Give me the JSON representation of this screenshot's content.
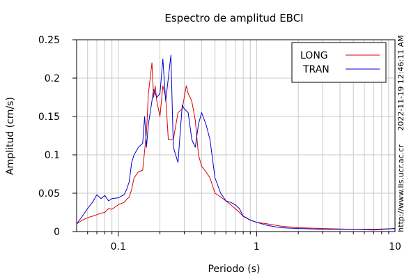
{
  "chart_data": {
    "type": "line",
    "title": "Espectro de amplitud EBCI",
    "xlabel": "Periodo (s)",
    "ylabel": "Amplitud (cm/s)",
    "x_scale": "log",
    "xlim": [
      0.05,
      10
    ],
    "ylim": [
      0,
      0.25
    ],
    "grid": true,
    "legend_position": "top-right",
    "x_tick_labels": [
      "0.1",
      "1",
      "10"
    ],
    "x_tick_values": [
      0.1,
      1,
      10
    ],
    "y_tick_labels": [
      "0",
      "0.05",
      "0.1",
      "0.15",
      "0.2",
      "0.25"
    ],
    "y_tick_values": [
      0,
      0.05,
      0.1,
      0.15,
      0.2,
      0.25
    ],
    "side_timestamp": "2022-11-19 12:46:11 AM",
    "side_url": "http://www.lis.ucr.ac.cr",
    "series": [
      {
        "name": "LONG",
        "color": "#dd0000",
        "x": [
          0.05,
          0.055,
          0.06,
          0.065,
          0.07,
          0.075,
          0.08,
          0.085,
          0.09,
          0.1,
          0.11,
          0.115,
          0.12,
          0.125,
          0.13,
          0.14,
          0.15,
          0.16,
          0.165,
          0.17,
          0.175,
          0.18,
          0.185,
          0.19,
          0.2,
          0.21,
          0.22,
          0.23,
          0.25,
          0.27,
          0.29,
          0.31,
          0.32,
          0.34,
          0.36,
          0.38,
          0.4,
          0.43,
          0.46,
          0.5,
          0.55,
          0.6,
          0.65,
          0.7,
          0.75,
          0.8,
          0.9,
          1.0,
          1.2,
          1.5,
          2.0,
          3.0,
          5.0,
          7.0,
          10.0
        ],
        "y": [
          0.01,
          0.015,
          0.018,
          0.02,
          0.022,
          0.024,
          0.025,
          0.03,
          0.029,
          0.035,
          0.038,
          0.042,
          0.045,
          0.055,
          0.07,
          0.078,
          0.08,
          0.13,
          0.18,
          0.2,
          0.22,
          0.175,
          0.19,
          0.17,
          0.15,
          0.19,
          0.175,
          0.12,
          0.12,
          0.155,
          0.16,
          0.19,
          0.18,
          0.17,
          0.145,
          0.1,
          0.085,
          0.078,
          0.07,
          0.05,
          0.045,
          0.04,
          0.035,
          0.03,
          0.025,
          0.02,
          0.015,
          0.012,
          0.01,
          0.007,
          0.005,
          0.004,
          0.003,
          0.003,
          0.004
        ]
      },
      {
        "name": "TRAN",
        "color": "#0000cc",
        "x": [
          0.05,
          0.055,
          0.06,
          0.065,
          0.07,
          0.075,
          0.08,
          0.085,
          0.09,
          0.1,
          0.11,
          0.115,
          0.12,
          0.125,
          0.13,
          0.14,
          0.15,
          0.155,
          0.16,
          0.165,
          0.17,
          0.18,
          0.19,
          0.2,
          0.21,
          0.22,
          0.23,
          0.24,
          0.25,
          0.27,
          0.29,
          0.3,
          0.32,
          0.34,
          0.36,
          0.38,
          0.4,
          0.43,
          0.46,
          0.5,
          0.55,
          0.6,
          0.65,
          0.7,
          0.75,
          0.8,
          0.9,
          1.0,
          1.2,
          1.5,
          2.0,
          3.0,
          5.0,
          7.0,
          10.0
        ],
        "y": [
          0.01,
          0.02,
          0.03,
          0.038,
          0.048,
          0.043,
          0.047,
          0.04,
          0.043,
          0.044,
          0.048,
          0.055,
          0.065,
          0.09,
          0.1,
          0.11,
          0.115,
          0.15,
          0.11,
          0.14,
          0.155,
          0.185,
          0.175,
          0.18,
          0.225,
          0.17,
          0.2,
          0.23,
          0.11,
          0.09,
          0.165,
          0.16,
          0.155,
          0.12,
          0.11,
          0.14,
          0.155,
          0.14,
          0.12,
          0.07,
          0.05,
          0.04,
          0.038,
          0.035,
          0.03,
          0.02,
          0.015,
          0.012,
          0.008,
          0.005,
          0.004,
          0.003,
          0.003,
          0.002,
          0.004
        ]
      }
    ]
  }
}
